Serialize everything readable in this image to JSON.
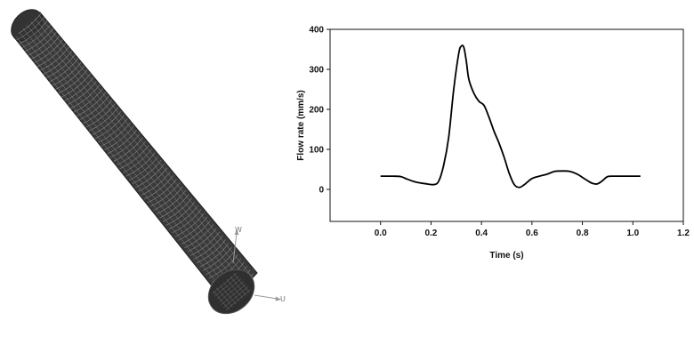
{
  "figure": {
    "left_panel": {
      "axis_labels": {
        "vertical": "W",
        "horizontal": "U"
      },
      "colors": {
        "mesh_fill": "#3a3a3a",
        "mesh_line": "#888888",
        "triad": "#999999"
      }
    }
  },
  "chart_data": {
    "type": "line",
    "title": "",
    "xlabel": "Time (s)",
    "ylabel": "Flow rate (mm/s)",
    "xlim": [
      -0.2,
      1.2
    ],
    "ylim": [
      -80,
      400
    ],
    "xticks": [
      "0.0",
      "0.2",
      "0.4",
      "0.6",
      "0.8",
      "1.0",
      "1.2"
    ],
    "yticks": [
      "0",
      "100",
      "200",
      "300",
      "400"
    ],
    "grid": false,
    "legend": "none",
    "line_color": "#000000",
    "series": [
      {
        "x": [
          0.0,
          0.05,
          0.08,
          0.1,
          0.13,
          0.15,
          0.18,
          0.21,
          0.23,
          0.25,
          0.27,
          0.29,
          0.31,
          0.32,
          0.33,
          0.34,
          0.35,
          0.37,
          0.39,
          0.41,
          0.43,
          0.45,
          0.47,
          0.49,
          0.51,
          0.53,
          0.55,
          0.57,
          0.6,
          0.63,
          0.66,
          0.69,
          0.72,
          0.75,
          0.78,
          0.8,
          0.82,
          0.84,
          0.86,
          0.88,
          0.9,
          0.93,
          0.96,
          1.0,
          1.03
        ],
        "y": [
          33,
          33,
          32,
          27,
          20,
          17,
          14,
          12,
          20,
          60,
          130,
          250,
          340,
          358,
          355,
          320,
          275,
          240,
          220,
          210,
          180,
          145,
          115,
          80,
          40,
          12,
          5,
          12,
          27,
          33,
          38,
          45,
          46,
          45,
          38,
          30,
          22,
          15,
          14,
          22,
          32,
          33,
          33,
          33,
          33
        ]
      }
    ]
  }
}
